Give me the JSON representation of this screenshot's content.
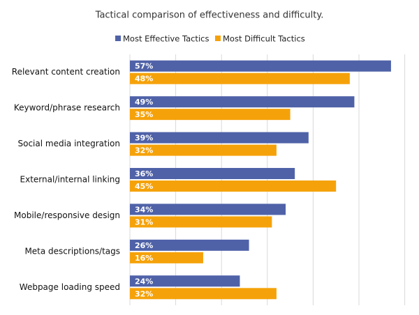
{
  "chart_data": {
    "type": "bar",
    "orientation": "horizontal",
    "title": "Tactical comparison of effectiveness and difficulty.",
    "categories": [
      "Relevant content creation",
      "Keyword/phrase research",
      "Social media integration",
      "External/internal linking",
      "Mobile/responsive design",
      "Meta descriptions/tags",
      "Webpage loading speed"
    ],
    "series": [
      {
        "name": "Most Effective Tactics",
        "color": "#4f62a8",
        "values": [
          57,
          49,
          39,
          36,
          34,
          26,
          24
        ],
        "value_labels": [
          "57%",
          "49%",
          "39%",
          "36%",
          "34%",
          "26%",
          "24%"
        ]
      },
      {
        "name": "Most Difficult Tactics",
        "color": "#f5a20a",
        "values": [
          48,
          35,
          32,
          45,
          31,
          16,
          32
        ],
        "value_labels": [
          "48%",
          "35%",
          "32%",
          "45%",
          "31%",
          "16%",
          "32%"
        ]
      }
    ],
    "xlim": [
      0,
      60
    ],
    "xticks": [
      0,
      10,
      20,
      30,
      40,
      50,
      60
    ],
    "grid": true,
    "legend": "top"
  }
}
